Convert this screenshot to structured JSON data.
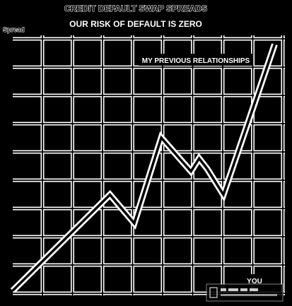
{
  "chart_data": {
    "type": "line",
    "title": "CREDIT DEFAULT SWAP SPREADS",
    "subtitle": "OUR RISK OF DEFAULT IS ZERO",
    "ylabel": "Spread",
    "xlabel": "",
    "xlim": [
      0,
      10
    ],
    "ylim": [
      0,
      10
    ],
    "grid": true,
    "series": [
      {
        "values": [
          {
            "x": 0.0,
            "y": 0.1
          },
          {
            "x": 3.6,
            "y": 3.8
          },
          {
            "x": 4.5,
            "y": 2.7
          },
          {
            "x": 5.5,
            "y": 6.0
          },
          {
            "x": 6.6,
            "y": 4.7
          },
          {
            "x": 6.9,
            "y": 5.2
          },
          {
            "x": 7.2,
            "y": 4.8
          },
          {
            "x": 7.8,
            "y": 3.8
          },
          {
            "x": 9.7,
            "y": 9.6
          }
        ]
      }
    ],
    "annotations": [
      {
        "text": "MY PREVIOUS RELATIONSHIPS",
        "x": 8.0,
        "y": 9.2
      },
      {
        "text": "YOU",
        "x": 9.3,
        "y": 0.2
      }
    ]
  },
  "colors": {
    "background": "#000000",
    "foreground": "#ffffff"
  }
}
